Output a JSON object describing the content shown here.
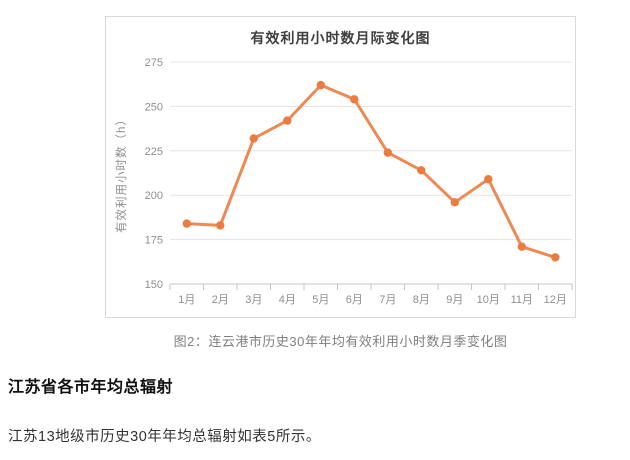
{
  "chart_data": {
    "type": "line",
    "title": "有效利用小时数月际变化图",
    "xlabel": "",
    "ylabel": "有效利用小时数（h）",
    "categories": [
      "1月",
      "2月",
      "3月",
      "4月",
      "5月",
      "6月",
      "7月",
      "8月",
      "9月",
      "10月",
      "11月",
      "12月"
    ],
    "values": [
      184,
      183,
      232,
      242,
      262,
      254,
      224,
      214,
      196,
      209,
      171,
      165
    ],
    "ylim": [
      150,
      275
    ],
    "y_ticks": [
      150,
      175,
      200,
      225,
      250,
      275
    ],
    "grid": true,
    "legend_position": "none",
    "line_color": "#ED8A54",
    "marker_color": "#EB7B3F",
    "grid_color": "#e3e3e3",
    "axis_color": "#c6c6c6",
    "tick_label_color": "#8f8f8f",
    "title_color": "#3f3f3f"
  },
  "caption": "图2：连云港市历史30年年均有效利用小时数月季变化图",
  "section": {
    "heading": "江苏省各市年均总辐射",
    "paragraph": "江苏13地级市历史30年年均总辐射如表5所示。"
  }
}
